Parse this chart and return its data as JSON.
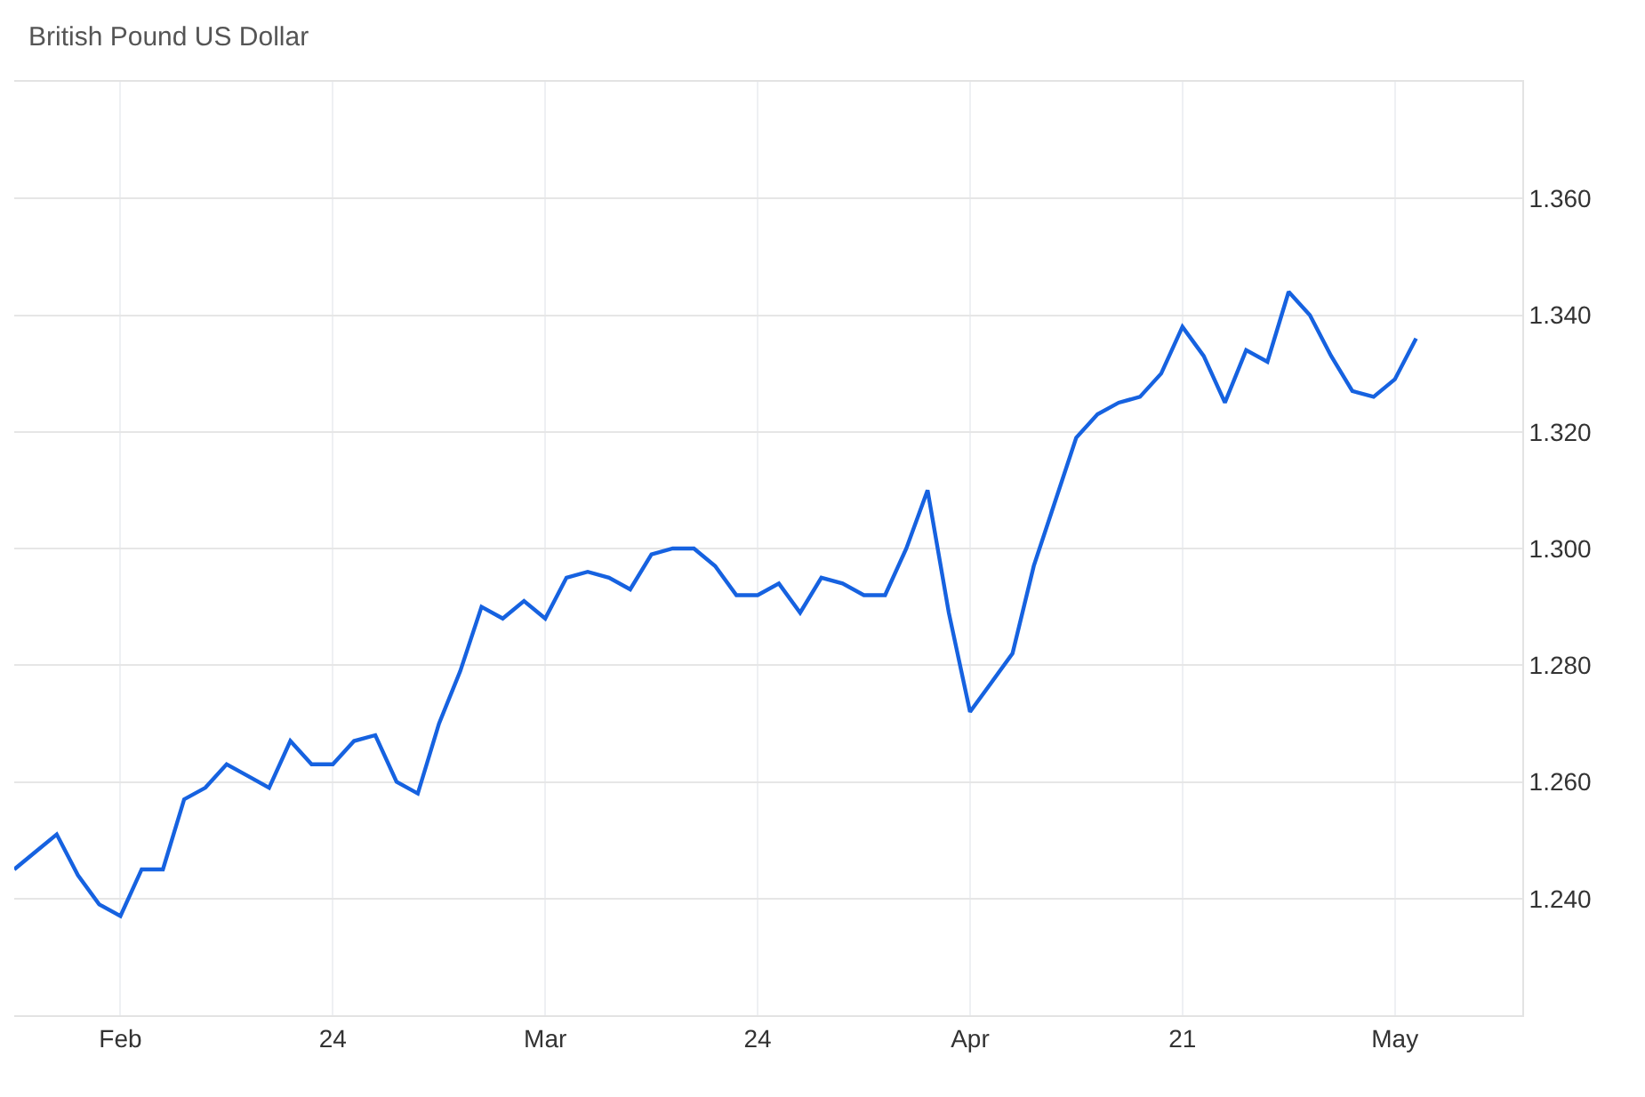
{
  "chart_data": {
    "type": "line",
    "title": "British Pound US Dollar",
    "categories": [
      null,
      null,
      null,
      null,
      null,
      "Feb",
      null,
      null,
      null,
      null,
      null,
      null,
      null,
      null,
      null,
      "24",
      null,
      null,
      null,
      null,
      null,
      null,
      null,
      null,
      null,
      "Mar",
      null,
      null,
      null,
      null,
      null,
      null,
      null,
      null,
      null,
      "24",
      null,
      null,
      null,
      null,
      null,
      null,
      null,
      null,
      null,
      "Apr",
      null,
      null,
      null,
      null,
      null,
      null,
      null,
      null,
      null,
      "21",
      null,
      null,
      null,
      null,
      null,
      null,
      null,
      null,
      null,
      "May",
      null
    ],
    "series": [
      {
        "color": "#1662e0",
        "values": [
          1.245,
          1.248,
          1.251,
          1.244,
          1.239,
          1.237,
          1.245,
          1.245,
          1.257,
          1.259,
          1.263,
          1.261,
          1.259,
          1.267,
          1.263,
          1.263,
          1.267,
          1.268,
          1.26,
          1.258,
          1.27,
          1.279,
          1.29,
          1.288,
          1.291,
          1.288,
          1.295,
          1.296,
          1.295,
          1.293,
          1.299,
          1.3,
          1.3,
          1.297,
          1.292,
          1.292,
          1.294,
          1.289,
          1.295,
          1.294,
          1.292,
          1.292,
          1.3,
          1.31,
          1.289,
          1.272,
          1.277,
          1.282,
          1.297,
          1.308,
          1.319,
          1.323,
          1.325,
          1.326,
          1.33,
          1.338,
          1.333,
          1.325,
          1.334,
          1.332,
          1.344,
          1.34,
          1.333,
          1.327,
          1.326,
          1.329,
          1.336
        ]
      }
    ],
    "ylim": [
      1.22,
      1.38
    ],
    "yticks": [
      {
        "value": 1.24,
        "label": "1.240"
      },
      {
        "value": 1.26,
        "label": "1.260"
      },
      {
        "value": 1.28,
        "label": "1.280"
      },
      {
        "value": 1.3,
        "label": "1.300"
      },
      {
        "value": 1.32,
        "label": "1.320"
      },
      {
        "value": 1.34,
        "label": "1.340"
      },
      {
        "value": 1.36,
        "label": "1.360"
      }
    ],
    "grid": true,
    "marker": "none",
    "line_style": "solid"
  }
}
